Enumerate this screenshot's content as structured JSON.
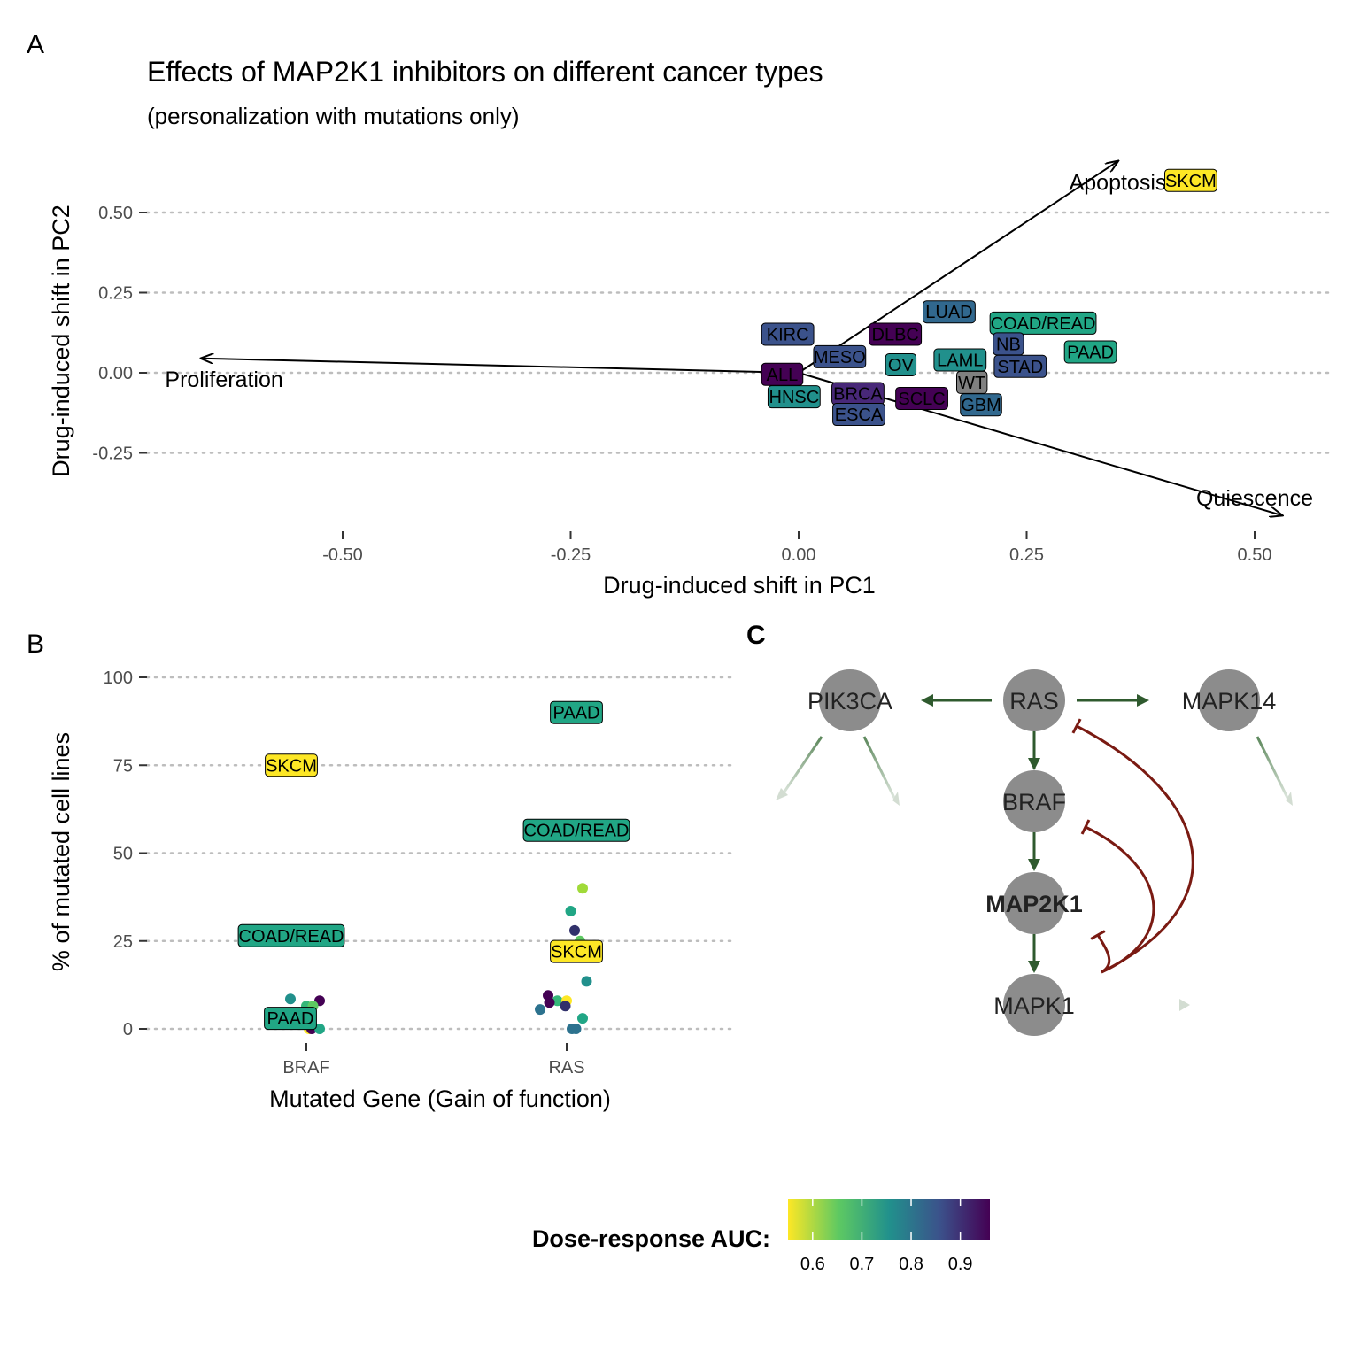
{
  "panel_letters": {
    "a": "A",
    "b": "B",
    "c": "C"
  },
  "chart_data": [
    {
      "type": "scatter",
      "panel": "A",
      "title": "Effects of MAP2K1 inhibitors on different cancer types",
      "subtitle": "(personalization with mutations only)",
      "xlabel": "Drug-induced shift in PC1",
      "ylabel": "Drug-induced shift in PC2",
      "xlim": [
        -0.7,
        0.58
      ],
      "ylim": [
        -0.4,
        0.6
      ],
      "xticks": [
        -0.5,
        -0.25,
        0.0,
        0.25,
        0.5
      ],
      "xtick_labels": [
        "-0.50",
        "-0.25",
        "0.00",
        "0.25",
        "0.50"
      ],
      "yticks": [
        0.5,
        0.25,
        0.0,
        -0.25
      ],
      "ytick_labels": [
        "0.50",
        "0.25",
        "0.00",
        "-0.25"
      ],
      "grid": "horizontal dotted",
      "points": [
        {
          "label": "SKCM",
          "x": 0.43,
          "y": 0.6,
          "color": "#fde725"
        },
        {
          "label": "LUAD",
          "x": 0.165,
          "y": 0.19,
          "color": "#31688e"
        },
        {
          "label": "COAD/READ",
          "x": 0.268,
          "y": 0.155,
          "color": "#21a685"
        },
        {
          "label": "KIRC",
          "x": -0.012,
          "y": 0.12,
          "color": "#3b528b"
        },
        {
          "label": "DLBC",
          "x": 0.106,
          "y": 0.12,
          "color": "#440154"
        },
        {
          "label": "NB",
          "x": 0.23,
          "y": 0.09,
          "color": "#3b528b"
        },
        {
          "label": "PAAD",
          "x": 0.32,
          "y": 0.065,
          "color": "#21a685"
        },
        {
          "label": "MESO",
          "x": 0.045,
          "y": 0.05,
          "color": "#3b528b"
        },
        {
          "label": "LAML",
          "x": 0.177,
          "y": 0.04,
          "color": "#21908c"
        },
        {
          "label": "OV",
          "x": 0.112,
          "y": 0.025,
          "color": "#21908c"
        },
        {
          "label": "STAD",
          "x": 0.243,
          "y": 0.02,
          "color": "#3b528b"
        },
        {
          "label": "ALL",
          "x": -0.018,
          "y": -0.005,
          "color": "#440154"
        },
        {
          "label": "WT",
          "x": 0.19,
          "y": -0.03,
          "color": "#808080"
        },
        {
          "label": "HNSC",
          "x": -0.005,
          "y": -0.075,
          "color": "#21908c"
        },
        {
          "label": "BRCA",
          "x": 0.065,
          "y": -0.065,
          "color": "#482878"
        },
        {
          "label": "SCLC",
          "x": 0.135,
          "y": -0.08,
          "color": "#440154"
        },
        {
          "label": "GBM",
          "x": 0.2,
          "y": -0.1,
          "color": "#31688e"
        },
        {
          "label": "ESCA",
          "x": 0.066,
          "y": -0.13,
          "color": "#3b528b"
        }
      ],
      "arrows": [
        {
          "label": "Apoptosis",
          "x": 0.35,
          "y": 0.66,
          "label_x": 0.35,
          "label_y": 0.595
        },
        {
          "label": "Proliferation",
          "x": -0.655,
          "y": 0.045,
          "label_x": -0.63,
          "label_y": -0.02
        },
        {
          "label": "Quiescence",
          "x": 0.53,
          "y": -0.445,
          "label_x": 0.5,
          "label_y": -0.39
        }
      ]
    },
    {
      "type": "scatter",
      "panel": "B",
      "xlabel": "Mutated Gene (Gain of function)",
      "ylabel": "% of mutated cell lines",
      "categories": [
        "BRAF",
        "RAS"
      ],
      "ylim": [
        -5,
        108
      ],
      "yticks": [
        0,
        25,
        50,
        75,
        100
      ],
      "ytick_labels": [
        "0",
        "25",
        "50",
        "75",
        "100"
      ],
      "grid": "horizontal dotted",
      "labels": [
        {
          "label": "SKCM",
          "category": "BRAF",
          "y": 75,
          "color": "#fde725"
        },
        {
          "label": "COAD/READ",
          "category": "BRAF",
          "y": 26.5,
          "color": "#21a685"
        },
        {
          "label": "PAAD",
          "category": "BRAF",
          "y": 3,
          "color": "#21a685"
        },
        {
          "label": "PAAD",
          "category": "RAS",
          "y": 90,
          "color": "#21a685"
        },
        {
          "label": "COAD/READ",
          "category": "RAS",
          "y": 56.5,
          "color": "#21a685"
        },
        {
          "label": "SKCM",
          "category": "RAS",
          "y": 22,
          "color": "#fde725"
        }
      ],
      "points": [
        {
          "category": "BRAF",
          "jitter": -0.12,
          "y": 8.5,
          "color": "#21908c"
        },
        {
          "category": "BRAF",
          "jitter": 0.1,
          "y": 8,
          "color": "#440154"
        },
        {
          "category": "BRAF",
          "jitter": -0.13,
          "y": 4.5,
          "color": "#21a685"
        },
        {
          "category": "BRAF",
          "jitter": -0.08,
          "y": 4.5,
          "color": "#3b528b"
        },
        {
          "category": "BRAF",
          "jitter": 0.0,
          "y": 6.5,
          "color": "#35b779"
        },
        {
          "category": "BRAF",
          "jitter": 0.05,
          "y": 6.5,
          "color": "#5ec962"
        },
        {
          "category": "BRAF",
          "jitter": -0.03,
          "y": 3,
          "color": "#2c728e"
        },
        {
          "category": "BRAF",
          "jitter": 0.02,
          "y": 0,
          "color": "#fde725"
        },
        {
          "category": "BRAF",
          "jitter": 0.04,
          "y": 0,
          "color": "#440154"
        },
        {
          "category": "BRAF",
          "jitter": 0.1,
          "y": 0,
          "color": "#21a685"
        },
        {
          "category": "RAS",
          "jitter": 0.12,
          "y": 40,
          "color": "#a0da39"
        },
        {
          "category": "RAS",
          "jitter": 0.03,
          "y": 33.5,
          "color": "#21a685"
        },
        {
          "category": "RAS",
          "jitter": 0.06,
          "y": 28,
          "color": "#31316b"
        },
        {
          "category": "RAS",
          "jitter": 0.1,
          "y": 25,
          "color": "#5ec962"
        },
        {
          "category": "RAS",
          "jitter": 0.15,
          "y": 13.5,
          "color": "#21908c"
        },
        {
          "category": "RAS",
          "jitter": -0.14,
          "y": 9.5,
          "color": "#440154"
        },
        {
          "category": "RAS",
          "jitter": -0.07,
          "y": 8,
          "color": "#35b779"
        },
        {
          "category": "RAS",
          "jitter": -0.13,
          "y": 7.5,
          "color": "#440154"
        },
        {
          "category": "RAS",
          "jitter": 0.0,
          "y": 8,
          "color": "#fde725"
        },
        {
          "category": "RAS",
          "jitter": -0.2,
          "y": 5.5,
          "color": "#2c728e"
        },
        {
          "category": "RAS",
          "jitter": -0.01,
          "y": 6.5,
          "color": "#31316b"
        },
        {
          "category": "RAS",
          "jitter": 0.12,
          "y": 3,
          "color": "#21a685"
        },
        {
          "category": "RAS",
          "jitter": 0.04,
          "y": 0,
          "color": "#2c728e"
        },
        {
          "category": "RAS",
          "jitter": 0.07,
          "y": 0,
          "color": "#2c728e"
        }
      ]
    }
  ],
  "network": {
    "nodes": [
      {
        "id": "PIK3CA",
        "label": "PIK3CA",
        "bold": false
      },
      {
        "id": "RAS",
        "label": "RAS",
        "bold": false
      },
      {
        "id": "MAPK14",
        "label": "MAPK14",
        "bold": false
      },
      {
        "id": "BRAF",
        "label": "BRAF",
        "bold": false
      },
      {
        "id": "MAP2K1",
        "label": "MAP2K1",
        "bold": true
      },
      {
        "id": "MAPK1",
        "label": "MAPK1",
        "bold": false
      }
    ],
    "activations": [
      {
        "from": "RAS",
        "to": "PIK3CA"
      },
      {
        "from": "RAS",
        "to": "MAPK14"
      },
      {
        "from": "RAS",
        "to": "BRAF"
      },
      {
        "from": "BRAF",
        "to": "MAP2K1"
      },
      {
        "from": "MAP2K1",
        "to": "MAPK1"
      }
    ],
    "inhibitions": [
      {
        "from": "MAPK1",
        "to": "RAS"
      },
      {
        "from": "MAPK1",
        "to": "BRAF"
      },
      {
        "from": "MAPK1",
        "to": "MAP2K1"
      }
    ],
    "colors": {
      "node": "#8c8c8c",
      "activation": "#2f5a2e",
      "inhibition": "#7a1a12"
    }
  },
  "legend": {
    "title": "Dose-response AUC:",
    "range": [
      0.55,
      0.96
    ],
    "ticks": [
      "0.6",
      "0.7",
      "0.8",
      "0.9"
    ],
    "tick_values": [
      0.6,
      0.7,
      0.8,
      0.9
    ],
    "colors": [
      "#fde725",
      "#5ec962",
      "#21918c",
      "#3b528b",
      "#440154"
    ]
  }
}
